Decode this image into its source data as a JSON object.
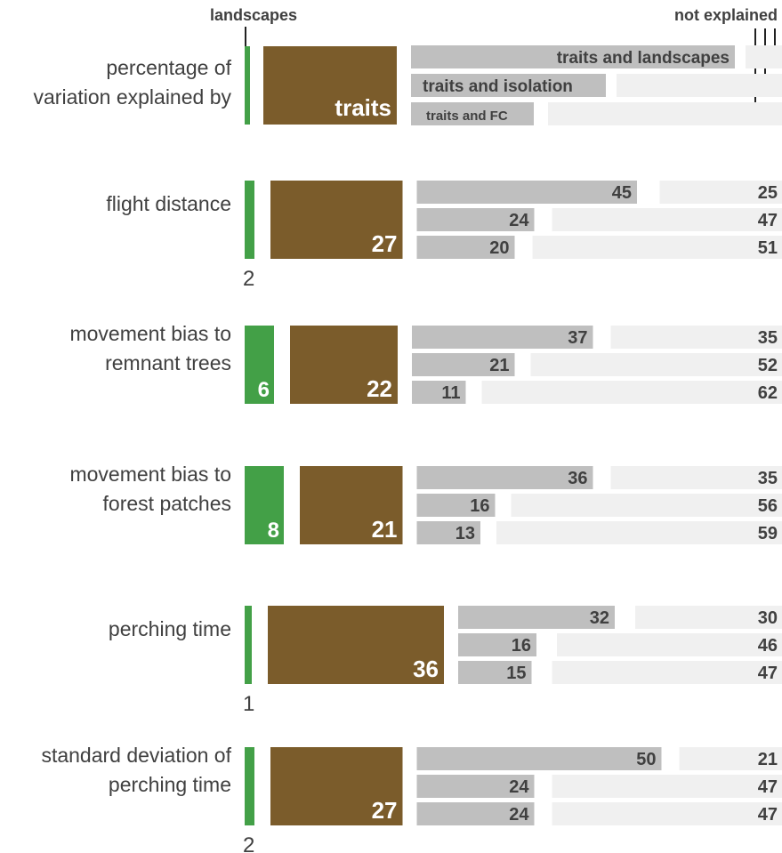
{
  "chart_data": {
    "type": "bar",
    "legend": {
      "landscapes": "landscapes",
      "not_explained": "not explained",
      "row_label_line1": "percentage of",
      "row_label_line2": "variation explained by",
      "traits": "traits",
      "traits_and_landscapes": "traits and landscapes",
      "traits_and_isolation": "traits and isolation",
      "traits_and_fc": "traits and FC"
    },
    "categories": [
      {
        "label_lines": [
          "flight distance"
        ],
        "landscapes": 2,
        "traits": 27,
        "combined": [
          {
            "name": "traits and landscapes",
            "explained": 45,
            "not_explained": 25
          },
          {
            "name": "traits and isolation",
            "explained": 24,
            "not_explained": 47
          },
          {
            "name": "traits and FC",
            "explained": 20,
            "not_explained": 51
          }
        ]
      },
      {
        "label_lines": [
          "movement bias to",
          "remnant trees"
        ],
        "landscapes": 6,
        "traits": 22,
        "combined": [
          {
            "name": "traits and landscapes",
            "explained": 37,
            "not_explained": 35
          },
          {
            "name": "traits and isolation",
            "explained": 21,
            "not_explained": 52
          },
          {
            "name": "traits and FC",
            "explained": 11,
            "not_explained": 62
          }
        ]
      },
      {
        "label_lines": [
          "movement bias to",
          "forest patches"
        ],
        "landscapes": 8,
        "traits": 21,
        "combined": [
          {
            "name": "traits and landscapes",
            "explained": 36,
            "not_explained": 35
          },
          {
            "name": "traits and isolation",
            "explained": 16,
            "not_explained": 56
          },
          {
            "name": "traits and FC",
            "explained": 13,
            "not_explained": 59
          }
        ]
      },
      {
        "label_lines": [
          "perching time"
        ],
        "landscapes": 1,
        "traits": 36,
        "combined": [
          {
            "name": "traits and landscapes",
            "explained": 32,
            "not_explained": 30
          },
          {
            "name": "traits and isolation",
            "explained": 16,
            "not_explained": 46
          },
          {
            "name": "traits and FC",
            "explained": 15,
            "not_explained": 47
          }
        ]
      },
      {
        "label_lines": [
          "standard deviation of",
          "perching time"
        ],
        "landscapes": 2,
        "traits": 27,
        "combined": [
          {
            "name": "traits and landscapes",
            "explained": 50,
            "not_explained": 21
          },
          {
            "name": "traits and isolation",
            "explained": 24,
            "not_explained": 47
          },
          {
            "name": "traits and FC",
            "explained": 24,
            "not_explained": 47
          }
        ]
      }
    ],
    "colors": {
      "landscapes": "#43a047",
      "traits": "#7b5c2b",
      "explained": "#bfbfbf",
      "not_explained": "#f0f0f0",
      "text": "#404040",
      "white": "#ffffff"
    }
  }
}
